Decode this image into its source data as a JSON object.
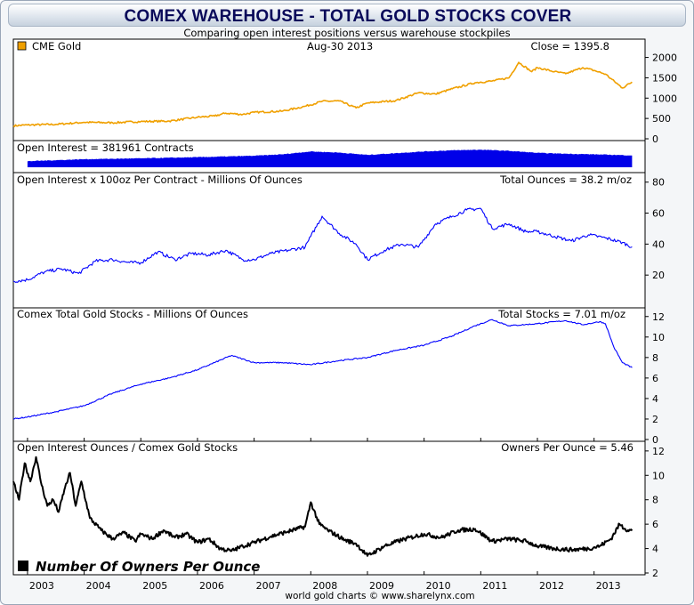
{
  "page": {
    "title": "COMEX WAREHOUSE - TOTAL GOLD STOCKS COVER",
    "subtitle": "Comparing open interest positions versus warehouse stockpiles",
    "footer": "world gold charts © www.sharelynx.com"
  },
  "colors": {
    "gold": "#f0a000",
    "blue": "#0000ff",
    "oi_fill": "#0000e8",
    "black": "#000000"
  },
  "legend": {
    "gold_label": "CME Gold",
    "owners_label": "Number Of Owners Per Ounce"
  },
  "chart_data": [
    {
      "type": "line",
      "panel": "gold",
      "title": "CME Gold",
      "date_label": "Aug-30 2013",
      "readout": "Close = 1395.8",
      "ylim": [
        0,
        2100
      ],
      "yticks": [
        0,
        500,
        1000,
        1500,
        2000
      ],
      "series": [
        {
          "name": "CME Gold",
          "color": "#f0a000",
          "x": [
            2002.75,
            2003.0,
            2003.5,
            2004.0,
            2004.5,
            2005.0,
            2005.5,
            2006.0,
            2006.3,
            2006.5,
            2006.8,
            2007.0,
            2007.5,
            2007.9,
            2008.2,
            2008.5,
            2008.8,
            2009.0,
            2009.5,
            2009.9,
            2010.2,
            2010.5,
            2010.9,
            2011.2,
            2011.5,
            2011.67,
            2011.9,
            2012.0,
            2012.3,
            2012.5,
            2012.8,
            2013.0,
            2013.2,
            2013.5,
            2013.67
          ],
          "y": [
            320,
            340,
            355,
            405,
            395,
            425,
            435,
            530,
            560,
            630,
            600,
            650,
            680,
            800,
            920,
            930,
            760,
            880,
            940,
            1130,
            1100,
            1230,
            1380,
            1420,
            1500,
            1880,
            1650,
            1750,
            1650,
            1600,
            1750,
            1680,
            1590,
            1250,
            1395.8
          ]
        }
      ]
    },
    {
      "type": "area",
      "panel": "open-interest",
      "title": "Open Interest = 381961 Contracts",
      "series": [
        {
          "name": "Open Interest",
          "color": "#0000e8",
          "x": [
            2003.0,
            2004.0,
            2005.0,
            2006.0,
            2007.0,
            2007.5,
            2008.0,
            2008.5,
            2009.0,
            2010.0,
            2010.5,
            2011.0,
            2011.5,
            2012.0,
            2012.5,
            2013.0,
            2013.67
          ],
          "y": [
            180,
            250,
            280,
            320,
            370,
            420,
            520,
            480,
            400,
            520,
            560,
            580,
            540,
            470,
            440,
            420,
            381.961
          ]
        }
      ]
    },
    {
      "type": "line",
      "panel": "oi-ounces",
      "title": "Open Interest x 100oz Per Contract - Millions Of Ounces",
      "readout": "Total Ounces = 38.2 m/oz",
      "ylim": [
        0,
        85
      ],
      "yticks": [
        20,
        40,
        60,
        80
      ],
      "series": [
        {
          "name": "Open Interest Ounces",
          "color": "#0000ff",
          "x": [
            2002.75,
            2003.0,
            2003.3,
            2003.6,
            2003.9,
            2004.2,
            2004.5,
            2004.8,
            2005.0,
            2005.3,
            2005.6,
            2005.9,
            2006.2,
            2006.5,
            2006.8,
            2007.0,
            2007.3,
            2007.6,
            2007.9,
            2008.0,
            2008.2,
            2008.5,
            2008.8,
            2009.0,
            2009.3,
            2009.6,
            2009.9,
            2010.2,
            2010.5,
            2010.75,
            2011.0,
            2011.2,
            2011.5,
            2011.8,
            2012.0,
            2012.3,
            2012.6,
            2012.9,
            2013.2,
            2013.5,
            2013.67
          ],
          "y": [
            16,
            17,
            22,
            24,
            21,
            29,
            30,
            28,
            28,
            35,
            30,
            34,
            33,
            36,
            30,
            30,
            34,
            36,
            38,
            45,
            58,
            47,
            40,
            30,
            36,
            40,
            38,
            53,
            58,
            62,
            63,
            50,
            53,
            48,
            48,
            45,
            42,
            46,
            44,
            41,
            38.2
          ]
        }
      ]
    },
    {
      "type": "line",
      "panel": "stocks",
      "title": "Comex Total Gold Stocks - Millions Of Ounces",
      "readout": "Total Stocks = 7.01 m/oz",
      "ylim": [
        0,
        12.5
      ],
      "yticks": [
        0,
        2,
        4,
        6,
        8,
        10,
        12
      ],
      "series": [
        {
          "name": "Comex Total Gold Stocks",
          "color": "#0000ff",
          "x": [
            2002.75,
            2003.0,
            2003.5,
            2004.0,
            2004.5,
            2005.0,
            2005.5,
            2006.0,
            2006.3,
            2006.6,
            2007.0,
            2007.5,
            2008.0,
            2008.5,
            2009.0,
            2009.5,
            2010.0,
            2010.5,
            2010.9,
            2011.2,
            2011.5,
            2012.0,
            2012.5,
            2012.8,
            2013.0,
            2013.1,
            2013.2,
            2013.35,
            2013.5,
            2013.67
          ],
          "y": [
            2.0,
            2.2,
            2.7,
            3.3,
            4.5,
            5.4,
            6.0,
            6.8,
            7.5,
            8.2,
            7.5,
            7.5,
            7.3,
            7.7,
            8.0,
            8.7,
            9.2,
            10.1,
            11.1,
            11.7,
            11.1,
            11.3,
            11.6,
            11.2,
            11.4,
            11.5,
            11.3,
            9.0,
            7.5,
            7.01
          ]
        }
      ]
    },
    {
      "type": "line",
      "panel": "owners",
      "title": "Open Interest Ounces / Comex Gold Stocks",
      "readout": "Owners Per Ounce = 5.46",
      "legend": "Number Of Owners Per Ounce",
      "ylim": [
        2,
        12.5
      ],
      "yticks": [
        2,
        4,
        6,
        8,
        10,
        12
      ],
      "series": [
        {
          "name": "Number Of Owners Per Ounce",
          "color": "#000000",
          "x": [
            2002.75,
            2002.85,
            2002.95,
            2003.05,
            2003.15,
            2003.25,
            2003.35,
            2003.45,
            2003.55,
            2003.65,
            2003.75,
            2003.85,
            2003.95,
            2004.1,
            2004.3,
            2004.5,
            2004.7,
            2004.9,
            2005.0,
            2005.2,
            2005.4,
            2005.6,
            2005.8,
            2006.0,
            2006.2,
            2006.4,
            2006.6,
            2006.8,
            2007.0,
            2007.3,
            2007.6,
            2007.9,
            2008.0,
            2008.15,
            2008.3,
            2008.6,
            2008.8,
            2009.0,
            2009.3,
            2009.6,
            2010.0,
            2010.3,
            2010.6,
            2010.9,
            2011.2,
            2011.5,
            2011.8,
            2012.0,
            2012.3,
            2012.6,
            2012.9,
            2013.1,
            2013.3,
            2013.45,
            2013.55,
            2013.67
          ],
          "y": [
            9.5,
            8.0,
            11.0,
            9.5,
            11.5,
            9.2,
            7.5,
            8.0,
            7.0,
            8.8,
            10.2,
            7.5,
            9.5,
            6.5,
            5.5,
            4.8,
            5.3,
            4.6,
            5.2,
            4.8,
            5.5,
            4.9,
            5.2,
            4.5,
            4.8,
            4.0,
            3.8,
            4.2,
            4.5,
            5.0,
            5.4,
            5.8,
            7.8,
            6.0,
            5.5,
            4.7,
            4.4,
            3.4,
            4.2,
            4.7,
            5.2,
            4.9,
            5.5,
            5.6,
            4.6,
            4.8,
            4.6,
            4.2,
            4.0,
            3.9,
            4.0,
            4.2,
            4.8,
            6.0,
            5.6,
            5.46
          ]
        }
      ]
    }
  ],
  "x_axis": {
    "xlim": [
      2002.75,
      2013.9
    ],
    "ticks": [
      "2003",
      "2004",
      "2005",
      "2006",
      "2007",
      "2008",
      "2009",
      "2010",
      "2011",
      "2012",
      "2013"
    ]
  }
}
